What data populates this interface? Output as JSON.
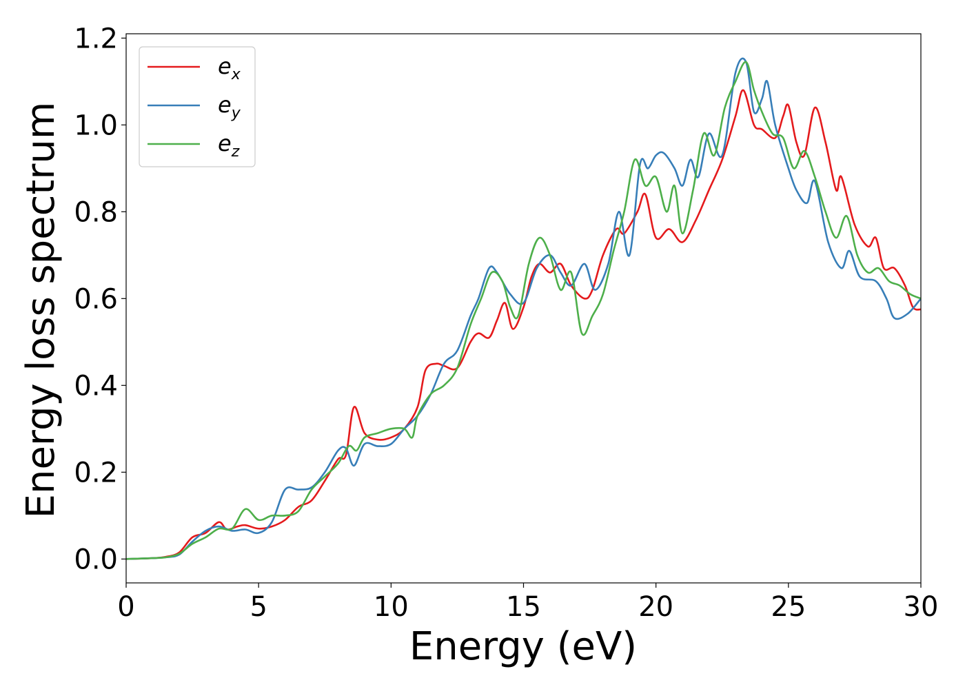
{
  "chart_data": {
    "type": "line",
    "title": "",
    "xlabel": "Energy (eV)",
    "ylabel": "Energy loss spectrum",
    "xlim": [
      0,
      30
    ],
    "ylim": [
      -0.055,
      1.21
    ],
    "xticks": [
      0,
      5,
      10,
      15,
      20,
      25,
      30
    ],
    "xtick_labels": [
      "0",
      "5",
      "10",
      "15",
      "20",
      "25",
      "30"
    ],
    "yticks": [
      0.0,
      0.2,
      0.4,
      0.6,
      0.8,
      1.0,
      1.2
    ],
    "ytick_labels": [
      "0.0",
      "0.2",
      "0.4",
      "0.6",
      "0.8",
      "1.0",
      "1.2"
    ],
    "grid": false,
    "legend_position": "top-left",
    "series": [
      {
        "name": "e_x",
        "legend_base": "e",
        "legend_sub": "x",
        "color": "#e41a1c",
        "points": [
          [
            0,
            0
          ],
          [
            1,
            0.002
          ],
          [
            1.5,
            0.005
          ],
          [
            2,
            0.015
          ],
          [
            2.5,
            0.05
          ],
          [
            3,
            0.06
          ],
          [
            3.5,
            0.085
          ],
          [
            3.8,
            0.068
          ],
          [
            4.2,
            0.075
          ],
          [
            4.5,
            0.078
          ],
          [
            5,
            0.07
          ],
          [
            5.5,
            0.075
          ],
          [
            6,
            0.09
          ],
          [
            6.5,
            0.12
          ],
          [
            7,
            0.135
          ],
          [
            7.5,
            0.18
          ],
          [
            8,
            0.23
          ],
          [
            8.3,
            0.24
          ],
          [
            8.6,
            0.35
          ],
          [
            9,
            0.29
          ],
          [
            9.5,
            0.275
          ],
          [
            10,
            0.28
          ],
          [
            10.5,
            0.3
          ],
          [
            11,
            0.35
          ],
          [
            11.3,
            0.435
          ],
          [
            11.7,
            0.45
          ],
          [
            12,
            0.445
          ],
          [
            12.5,
            0.44
          ],
          [
            13,
            0.5
          ],
          [
            13.3,
            0.52
          ],
          [
            13.7,
            0.51
          ],
          [
            14,
            0.55
          ],
          [
            14.3,
            0.59
          ],
          [
            14.6,
            0.53
          ],
          [
            15,
            0.58
          ],
          [
            15.3,
            0.65
          ],
          [
            15.6,
            0.68
          ],
          [
            16,
            0.66
          ],
          [
            16.4,
            0.68
          ],
          [
            16.8,
            0.63
          ],
          [
            17.3,
            0.6
          ],
          [
            17.6,
            0.62
          ],
          [
            18,
            0.7
          ],
          [
            18.5,
            0.76
          ],
          [
            18.8,
            0.75
          ],
          [
            19.3,
            0.8
          ],
          [
            19.6,
            0.84
          ],
          [
            20,
            0.74
          ],
          [
            20.5,
            0.76
          ],
          [
            21,
            0.73
          ],
          [
            21.5,
            0.78
          ],
          [
            22,
            0.85
          ],
          [
            22.5,
            0.92
          ],
          [
            23,
            1.02
          ],
          [
            23.3,
            1.08
          ],
          [
            23.7,
            1.0
          ],
          [
            24,
            0.99
          ],
          [
            24.5,
            0.97
          ],
          [
            24.8,
            1.02
          ],
          [
            25,
            1.045
          ],
          [
            25.3,
            0.96
          ],
          [
            25.6,
            0.93
          ],
          [
            26,
            1.04
          ],
          [
            26.4,
            0.96
          ],
          [
            26.8,
            0.85
          ],
          [
            27,
            0.88
          ],
          [
            27.5,
            0.77
          ],
          [
            28,
            0.72
          ],
          [
            28.3,
            0.74
          ],
          [
            28.6,
            0.67
          ],
          [
            29,
            0.67
          ],
          [
            29.4,
            0.63
          ],
          [
            29.7,
            0.58
          ],
          [
            30,
            0.575
          ]
        ]
      },
      {
        "name": "e_y",
        "legend_base": "e",
        "legend_sub": "y",
        "color": "#377eb8",
        "points": [
          [
            0,
            0
          ],
          [
            1,
            0.002
          ],
          [
            1.5,
            0.004
          ],
          [
            2,
            0.01
          ],
          [
            2.5,
            0.04
          ],
          [
            3,
            0.065
          ],
          [
            3.5,
            0.075
          ],
          [
            4,
            0.065
          ],
          [
            4.5,
            0.068
          ],
          [
            5,
            0.06
          ],
          [
            5.5,
            0.085
          ],
          [
            6,
            0.16
          ],
          [
            6.5,
            0.16
          ],
          [
            7,
            0.165
          ],
          [
            7.5,
            0.2
          ],
          [
            8,
            0.25
          ],
          [
            8.3,
            0.255
          ],
          [
            8.6,
            0.215
          ],
          [
            9,
            0.265
          ],
          [
            9.5,
            0.26
          ],
          [
            10,
            0.265
          ],
          [
            10.5,
            0.3
          ],
          [
            11,
            0.33
          ],
          [
            11.5,
            0.38
          ],
          [
            12,
            0.45
          ],
          [
            12.5,
            0.48
          ],
          [
            13,
            0.56
          ],
          [
            13.3,
            0.6
          ],
          [
            13.7,
            0.67
          ],
          [
            14,
            0.66
          ],
          [
            14.5,
            0.61
          ],
          [
            15,
            0.59
          ],
          [
            15.5,
            0.67
          ],
          [
            16,
            0.7
          ],
          [
            16.4,
            0.66
          ],
          [
            16.8,
            0.63
          ],
          [
            17.3,
            0.68
          ],
          [
            17.7,
            0.62
          ],
          [
            18.2,
            0.68
          ],
          [
            18.6,
            0.8
          ],
          [
            19,
            0.7
          ],
          [
            19.4,
            0.91
          ],
          [
            19.7,
            0.9
          ],
          [
            20,
            0.93
          ],
          [
            20.3,
            0.935
          ],
          [
            20.7,
            0.9
          ],
          [
            21,
            0.86
          ],
          [
            21.3,
            0.92
          ],
          [
            21.6,
            0.88
          ],
          [
            22,
            0.98
          ],
          [
            22.5,
            0.93
          ],
          [
            23,
            1.12
          ],
          [
            23.4,
            1.145
          ],
          [
            23.7,
            1.03
          ],
          [
            24,
            1.06
          ],
          [
            24.2,
            1.1
          ],
          [
            24.5,
            1.0
          ],
          [
            25,
            0.9
          ],
          [
            25.3,
            0.85
          ],
          [
            25.7,
            0.82
          ],
          [
            26,
            0.87
          ],
          [
            26.5,
            0.73
          ],
          [
            27,
            0.67
          ],
          [
            27.3,
            0.71
          ],
          [
            27.7,
            0.65
          ],
          [
            28.3,
            0.64
          ],
          [
            28.7,
            0.6
          ],
          [
            29,
            0.555
          ],
          [
            29.5,
            0.565
          ],
          [
            30,
            0.6
          ]
        ]
      },
      {
        "name": "e_z",
        "legend_base": "e",
        "legend_sub": "z",
        "color": "#4daf4a",
        "points": [
          [
            0,
            0
          ],
          [
            1,
            0.002
          ],
          [
            1.5,
            0.004
          ],
          [
            2,
            0.012
          ],
          [
            2.5,
            0.035
          ],
          [
            3,
            0.05
          ],
          [
            3.5,
            0.07
          ],
          [
            4,
            0.07
          ],
          [
            4.5,
            0.115
          ],
          [
            5,
            0.09
          ],
          [
            5.5,
            0.1
          ],
          [
            6,
            0.1
          ],
          [
            6.5,
            0.11
          ],
          [
            7,
            0.16
          ],
          [
            7.5,
            0.19
          ],
          [
            8,
            0.22
          ],
          [
            8.4,
            0.26
          ],
          [
            8.7,
            0.25
          ],
          [
            9,
            0.28
          ],
          [
            9.5,
            0.29
          ],
          [
            10,
            0.3
          ],
          [
            10.5,
            0.3
          ],
          [
            10.8,
            0.28
          ],
          [
            11,
            0.33
          ],
          [
            11.5,
            0.38
          ],
          [
            12,
            0.4
          ],
          [
            12.5,
            0.44
          ],
          [
            13,
            0.54
          ],
          [
            13.4,
            0.6
          ],
          [
            13.8,
            0.66
          ],
          [
            14.2,
            0.64
          ],
          [
            14.5,
            0.58
          ],
          [
            14.8,
            0.56
          ],
          [
            15.2,
            0.68
          ],
          [
            15.6,
            0.74
          ],
          [
            16,
            0.7
          ],
          [
            16.4,
            0.62
          ],
          [
            16.8,
            0.66
          ],
          [
            17.2,
            0.52
          ],
          [
            17.6,
            0.56
          ],
          [
            18,
            0.61
          ],
          [
            18.4,
            0.71
          ],
          [
            18.8,
            0.8
          ],
          [
            19.2,
            0.92
          ],
          [
            19.6,
            0.86
          ],
          [
            20,
            0.88
          ],
          [
            20.4,
            0.8
          ],
          [
            20.7,
            0.86
          ],
          [
            21,
            0.75
          ],
          [
            21.4,
            0.85
          ],
          [
            21.8,
            0.98
          ],
          [
            22.2,
            0.93
          ],
          [
            22.6,
            1.04
          ],
          [
            23,
            1.1
          ],
          [
            23.4,
            1.145
          ],
          [
            23.7,
            1.08
          ],
          [
            24,
            1.03
          ],
          [
            24.4,
            0.98
          ],
          [
            24.8,
            0.97
          ],
          [
            25.2,
            0.9
          ],
          [
            25.6,
            0.94
          ],
          [
            26,
            0.88
          ],
          [
            26.4,
            0.8
          ],
          [
            26.8,
            0.74
          ],
          [
            27.2,
            0.79
          ],
          [
            27.6,
            0.7
          ],
          [
            28,
            0.66
          ],
          [
            28.4,
            0.67
          ],
          [
            28.8,
            0.64
          ],
          [
            29.2,
            0.63
          ],
          [
            29.6,
            0.61
          ],
          [
            30,
            0.6
          ]
        ]
      }
    ]
  }
}
